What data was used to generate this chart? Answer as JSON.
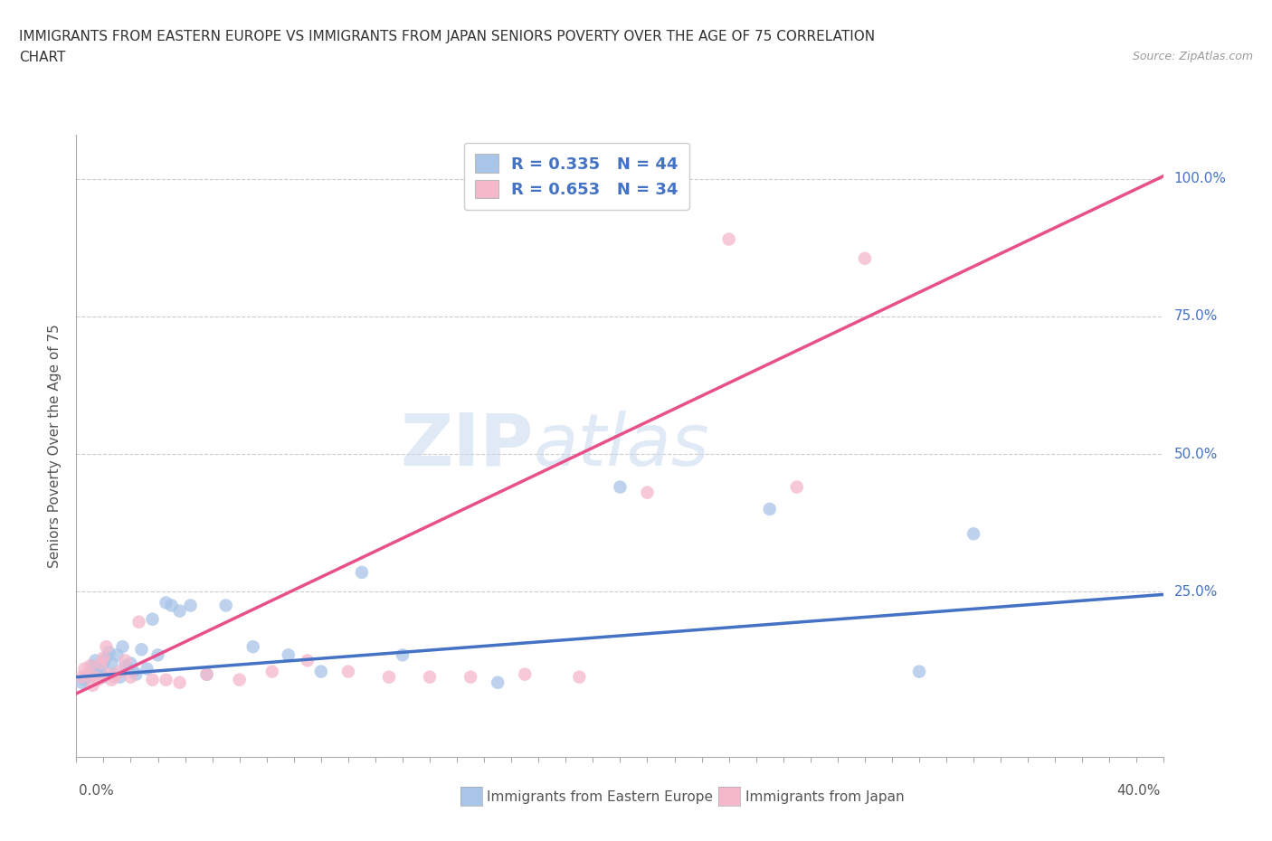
{
  "title_line1": "IMMIGRANTS FROM EASTERN EUROPE VS IMMIGRANTS FROM JAPAN SENIORS POVERTY OVER THE AGE OF 75 CORRELATION",
  "title_line2": "CHART",
  "source_text": "Source: ZipAtlas.com",
  "ylabel": "Seniors Poverty Over the Age of 75",
  "xmin": 0.0,
  "xmax": 0.4,
  "ymin": -0.05,
  "ymax": 1.08,
  "ytick_labels": [
    "25.0%",
    "50.0%",
    "75.0%",
    "100.0%"
  ],
  "ytick_vals": [
    0.25,
    0.5,
    0.75,
    1.0
  ],
  "watermark_zip": "ZIP",
  "watermark_atlas": "atlas",
  "blue_color": "#a8c4e8",
  "pink_color": "#f5b8cb",
  "blue_line_color": "#4472c4",
  "pink_line_color": "#e8508a",
  "legend_r1": "R = 0.335   N = 44",
  "legend_r2": "R = 0.653   N = 34",
  "blue_scatter_x": [
    0.002,
    0.003,
    0.004,
    0.005,
    0.006,
    0.006,
    0.007,
    0.007,
    0.008,
    0.009,
    0.01,
    0.01,
    0.011,
    0.012,
    0.013,
    0.014,
    0.015,
    0.016,
    0.017,
    0.018,
    0.019,
    0.02,
    0.021,
    0.022,
    0.024,
    0.026,
    0.028,
    0.03,
    0.033,
    0.035,
    0.038,
    0.042,
    0.048,
    0.055,
    0.065,
    0.078,
    0.09,
    0.105,
    0.12,
    0.155,
    0.2,
    0.255,
    0.31,
    0.33
  ],
  "blue_scatter_y": [
    0.085,
    0.09,
    0.095,
    0.1,
    0.105,
    0.115,
    0.095,
    0.125,
    0.11,
    0.105,
    0.12,
    0.095,
    0.13,
    0.14,
    0.12,
    0.1,
    0.135,
    0.095,
    0.15,
    0.115,
    0.11,
    0.12,
    0.105,
    0.1,
    0.145,
    0.11,
    0.2,
    0.135,
    0.23,
    0.225,
    0.215,
    0.225,
    0.1,
    0.225,
    0.15,
    0.135,
    0.105,
    0.285,
    0.135,
    0.085,
    0.44,
    0.4,
    0.105,
    0.355
  ],
  "pink_scatter_x": [
    0.002,
    0.003,
    0.004,
    0.005,
    0.006,
    0.007,
    0.008,
    0.009,
    0.01,
    0.011,
    0.012,
    0.013,
    0.014,
    0.016,
    0.018,
    0.02,
    0.023,
    0.028,
    0.033,
    0.038,
    0.048,
    0.06,
    0.072,
    0.085,
    0.1,
    0.115,
    0.13,
    0.145,
    0.165,
    0.185,
    0.21,
    0.24,
    0.265,
    0.29
  ],
  "pink_scatter_y": [
    0.095,
    0.11,
    0.1,
    0.115,
    0.08,
    0.095,
    0.09,
    0.12,
    0.13,
    0.15,
    0.1,
    0.09,
    0.095,
    0.105,
    0.125,
    0.095,
    0.195,
    0.09,
    0.09,
    0.085,
    0.1,
    0.09,
    0.105,
    0.125,
    0.105,
    0.095,
    0.095,
    0.095,
    0.1,
    0.095,
    0.43,
    0.89,
    0.44,
    0.855
  ],
  "blue_trend_x": [
    0.0,
    0.4
  ],
  "blue_trend_y": [
    0.095,
    0.245
  ],
  "pink_trend_x": [
    0.0,
    0.4
  ],
  "pink_trend_y": [
    0.065,
    1.005
  ],
  "bg_color": "#ffffff",
  "grid_color": "#cccccc",
  "legend_bottom_blue": "Immigrants from Eastern Europe",
  "legend_bottom_pink": "Immigrants from Japan"
}
